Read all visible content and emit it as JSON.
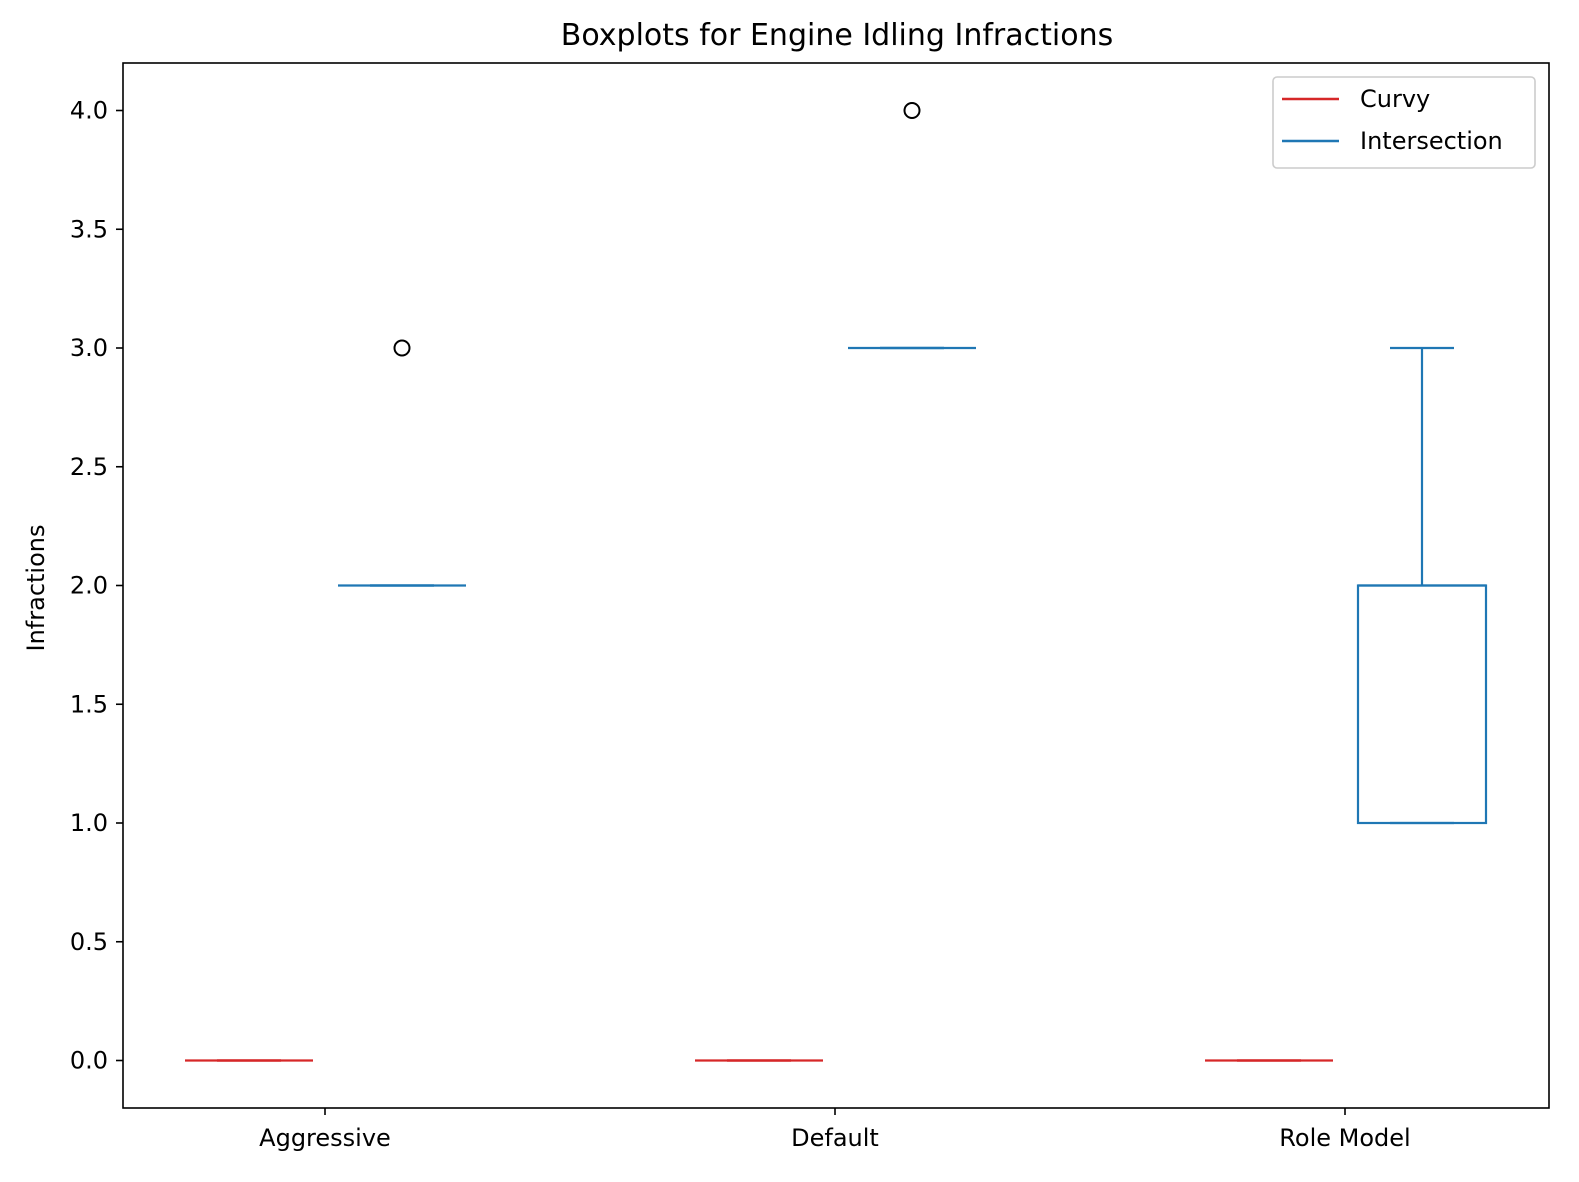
{
  "chart_data": {
    "type": "box",
    "title": "Boxplots for Engine Idling Infractions",
    "xlabel": "",
    "ylabel": "Infractions",
    "categories": [
      "Aggressive",
      "Default",
      "Role Model"
    ],
    "ylim": [
      -0.2,
      4.2
    ],
    "yticks": [
      "0.0",
      "0.5",
      "1.0",
      "1.5",
      "2.0",
      "2.5",
      "3.0",
      "3.5",
      "4.0"
    ],
    "grid": false,
    "legend_position": "top-right",
    "series": [
      {
        "name": "Curvy",
        "color": "#d62728",
        "boxes": [
          {
            "category": "Aggressive",
            "min": 0,
            "q1": 0,
            "median": 0,
            "q3": 0,
            "max": 0,
            "outliers": []
          },
          {
            "category": "Default",
            "min": 0,
            "q1": 0,
            "median": 0,
            "q3": 0,
            "max": 0,
            "outliers": []
          },
          {
            "category": "Role Model",
            "min": 0,
            "q1": 0,
            "median": 0,
            "q3": 0,
            "max": 0,
            "outliers": []
          }
        ]
      },
      {
        "name": "Intersection",
        "color": "#1f77b4",
        "boxes": [
          {
            "category": "Aggressive",
            "min": 2,
            "q1": 2,
            "median": 2,
            "q3": 2,
            "max": 2,
            "outliers": [
              3
            ]
          },
          {
            "category": "Default",
            "min": 3,
            "q1": 3,
            "median": 3,
            "q3": 3,
            "max": 3,
            "outliers": [
              4
            ]
          },
          {
            "category": "Role Model",
            "min": 1,
            "q1": 1,
            "median": 2,
            "q3": 2,
            "max": 3,
            "outliers": []
          }
        ]
      }
    ]
  }
}
